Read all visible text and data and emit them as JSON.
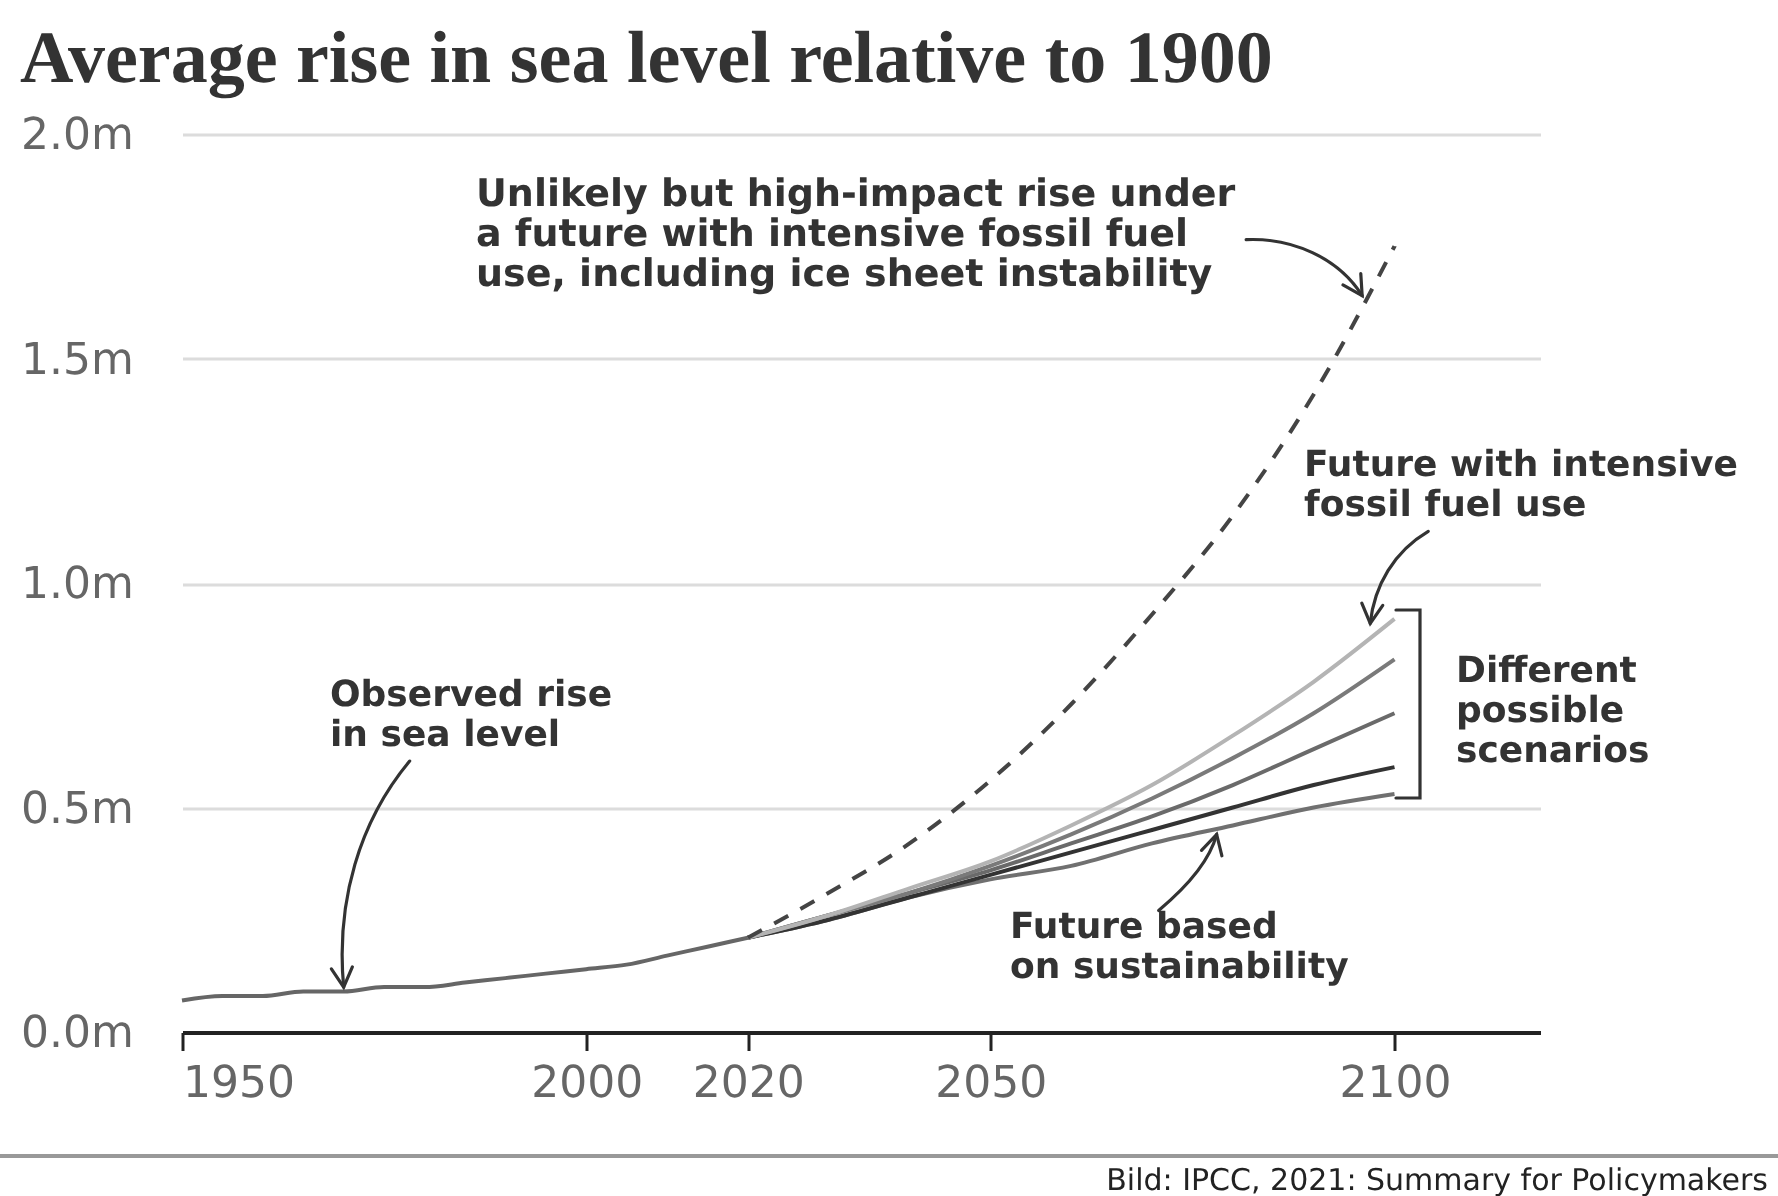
{
  "chart_data": {
    "type": "line",
    "title": "Average rise in sea level relative to 1900",
    "xlim": [
      1950,
      2118
    ],
    "xticks": [
      1950,
      2000,
      2020,
      2050,
      2100
    ],
    "ylim": [
      0,
      2
    ],
    "yticks": [
      {
        "value": 0,
        "label": "0.0m"
      },
      {
        "value": 0.5,
        "label": "0.5m"
      },
      {
        "value": 1,
        "label": "1.0m"
      },
      {
        "value": 1.5,
        "label": "1.5m"
      },
      {
        "value": 2,
        "label": "2.0m"
      }
    ],
    "grid": "y",
    "series": [
      {
        "color": "#666666",
        "x": [
          1950,
          1955,
          1960,
          1965,
          1970,
          1975,
          1980,
          1985,
          1990,
          1995,
          2000,
          2005,
          2010,
          2015,
          2020
        ],
        "values": [
          0.07,
          0.08,
          0.08,
          0.09,
          0.09,
          0.1,
          0.1,
          0.11,
          0.12,
          0.13,
          0.14,
          0.15,
          0.17,
          0.19,
          0.21
        ]
      },
      {
        "color": "#707070",
        "x": [
          2020,
          2030,
          2040,
          2050,
          2060,
          2070,
          2080,
          2090,
          2100
        ],
        "values": [
          0.21,
          0.25,
          0.3,
          0.34,
          0.37,
          0.42,
          0.46,
          0.5,
          0.53
        ]
      },
      {
        "color": "#333333",
        "x": [
          2020,
          2030,
          2040,
          2050,
          2060,
          2070,
          2080,
          2090,
          2100
        ],
        "values": [
          0.21,
          0.25,
          0.3,
          0.35,
          0.4,
          0.45,
          0.5,
          0.55,
          0.59
        ]
      },
      {
        "color": "#6a6a6a",
        "x": [
          2020,
          2030,
          2040,
          2050,
          2060,
          2070,
          2080,
          2090,
          2100
        ],
        "values": [
          0.21,
          0.26,
          0.31,
          0.36,
          0.42,
          0.48,
          0.55,
          0.63,
          0.71
        ]
      },
      {
        "color": "#7a7a7a",
        "x": [
          2020,
          2030,
          2040,
          2050,
          2060,
          2070,
          2080,
          2090,
          2100
        ],
        "values": [
          0.21,
          0.26,
          0.31,
          0.37,
          0.44,
          0.52,
          0.61,
          0.71,
          0.83
        ]
      },
      {
        "color": "#b4b4b4",
        "x": [
          2020,
          2030,
          2040,
          2050,
          2060,
          2070,
          2080,
          2090,
          2100
        ],
        "values": [
          0.21,
          0.26,
          0.32,
          0.38,
          0.46,
          0.55,
          0.66,
          0.78,
          0.92
        ]
      },
      {
        "color": "#444444",
        "line_style": "dashed",
        "x": [
          2020,
          2030,
          2040,
          2050,
          2060,
          2070,
          2080,
          2090,
          2100
        ],
        "values": [
          0.21,
          0.31,
          0.42,
          0.56,
          0.73,
          0.93,
          1.15,
          1.42,
          1.75
        ]
      }
    ],
    "annotations": [
      {
        "text": "Unlikely but high-impact rise under\na future with intensive fossil fuel\nuse, including ice sheet instability",
        "x": 2096,
        "y": 1.64
      },
      {
        "text": "Future with intensive\nfossil fuel use",
        "x": 2097,
        "y": 0.91
      },
      "Different\npossible\nscenarios",
      {
        "text": "Observed rise\nin sea level",
        "x": 1970,
        "y": 0.1
      },
      {
        "text": "Future based\non sustainability",
        "x": 2078,
        "y": 0.44
      },
      "Bild: IPCC, 2021: Summary for Policymakers"
    ]
  }
}
